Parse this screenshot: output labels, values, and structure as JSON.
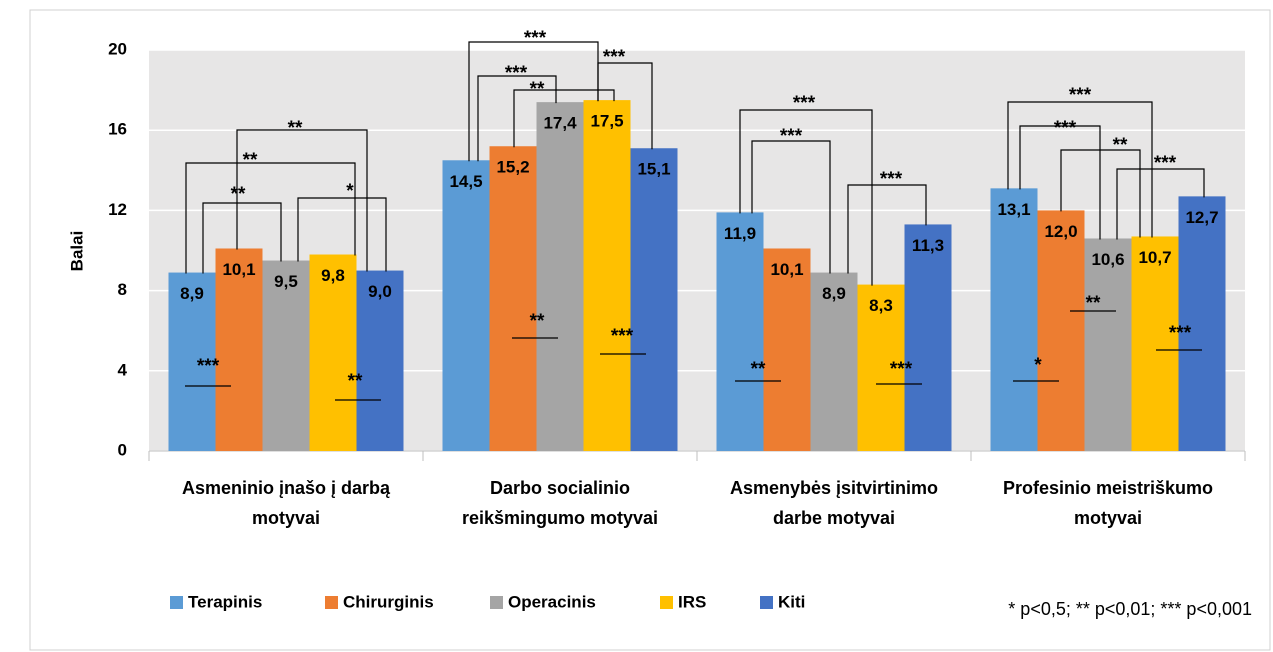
{
  "chart_data": {
    "type": "bar",
    "y_label": "Balai",
    "categories": [
      [
        "Asmeninio įnašo į darbą",
        "motyvai"
      ],
      [
        "Darbo socialinio",
        "reikšmingumo motyvai"
      ],
      [
        "Asmenybės įsitvirtinimo",
        "darbe motyvai"
      ],
      [
        "Profesinio meistriškumo",
        "motyvai"
      ]
    ],
    "series": [
      {
        "name": "Terapinis",
        "color": "#5b9bd5",
        "values": [
          8.9,
          14.5,
          11.9,
          13.1
        ],
        "value_labels": [
          "8,9",
          "14,5",
          "11,9",
          "13,1"
        ]
      },
      {
        "name": "Chirurginis",
        "color": "#ed7d31",
        "values": [
          10.1,
          15.2,
          10.1,
          12.0
        ],
        "value_labels": [
          "10,1",
          "15,2",
          "10,1",
          "12,0"
        ]
      },
      {
        "name": "Operacinis",
        "color": "#a5a5a5",
        "values": [
          9.5,
          17.4,
          8.9,
          10.6
        ],
        "value_labels": [
          "9,5",
          "17,4",
          "8,9",
          "10,6"
        ]
      },
      {
        "name": "IRS",
        "color": "#ffc000",
        "values": [
          9.8,
          17.5,
          8.3,
          10.7
        ],
        "value_labels": [
          "9,8",
          "17,5",
          "8,3",
          "10,7"
        ]
      },
      {
        "name": "Kiti",
        "color": "#4472c4",
        "values": [
          9.0,
          15.1,
          11.3,
          12.7
        ],
        "value_labels": [
          "9,0",
          "15,1",
          "11,3",
          "12,7"
        ]
      }
    ],
    "ylim": [
      0,
      20
    ],
    "yticks": [
      0,
      4,
      8,
      12,
      16,
      20
    ],
    "grid": true,
    "legend": "bottom",
    "annotations": [
      "**",
      "**",
      "**",
      "*",
      "***",
      "**",
      "***",
      "***",
      "**",
      "***",
      "**",
      "***",
      "***",
      "***",
      "***",
      "**",
      "***",
      "***",
      "***",
      "**",
      "***",
      "*",
      "**",
      "***"
    ],
    "footnote": "* p<0,5; ** p<0,01; *** p<0,001"
  }
}
